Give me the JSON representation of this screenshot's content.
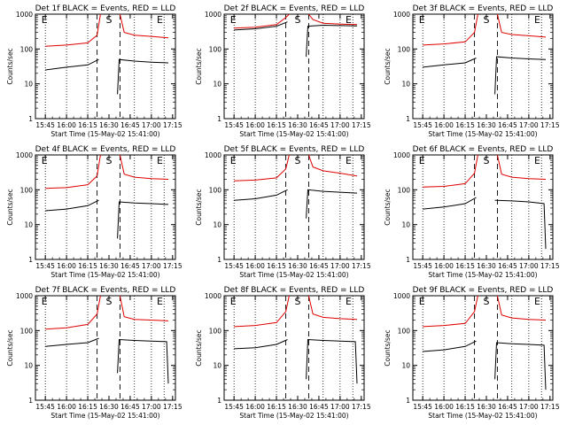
{
  "colors": {
    "events": "#000000",
    "lld": "#e00000",
    "axis": "#000000",
    "background": "#ffffff"
  },
  "chart_data": [
    {
      "type": "line",
      "title": "Det 1f BLACK = Events, RED = LLD",
      "xlabel": "Start Time (15-May-02 15:41:00)",
      "ylabel": "Counts/sec",
      "ylog": true,
      "ylim": [
        1,
        1000
      ],
      "x_ticks": [
        "15:45",
        "16:00",
        "16:15",
        "16:30",
        "16:45",
        "17:00",
        "17:15"
      ],
      "y_ticks": [
        "1",
        "10",
        "100",
        "1000"
      ],
      "markers": [
        "E",
        "S",
        "E"
      ],
      "series": [
        {
          "name": "LLD",
          "points": [
            [
              15.75,
              120
            ],
            [
              16.0,
              130
            ],
            [
              16.25,
              150
            ],
            [
              16.36,
              250
            ],
            [
              16.4,
              1200
            ]
          ],
          "points2": [
            [
              16.63,
              1200
            ],
            [
              16.68,
              300
            ],
            [
              16.8,
              250
            ],
            [
              17.0,
              230
            ],
            [
              17.2,
              210
            ]
          ]
        },
        {
          "name": "Events",
          "points": [
            [
              15.75,
              25
            ],
            [
              16.0,
              30
            ],
            [
              16.25,
              35
            ],
            [
              16.38,
              50
            ]
          ],
          "points2": [
            [
              16.6,
              5
            ],
            [
              16.62,
              50
            ],
            [
              16.8,
              45
            ],
            [
              17.0,
              42
            ],
            [
              17.2,
              40
            ]
          ]
        }
      ]
    },
    {
      "type": "line",
      "title": "Det 2f BLACK = Events, RED = LLD",
      "xlabel": "Start Time (15-May-02 15:41:00)",
      "ylabel": "Counts/sec",
      "ylog": true,
      "ylim": [
        1,
        1000
      ],
      "x_ticks": [
        "15:45",
        "16:00",
        "16:15",
        "16:30",
        "16:45",
        "17:00",
        "17:15"
      ],
      "y_ticks": [
        "1",
        "10",
        "100",
        "1000"
      ],
      "markers": [
        "E",
        "S",
        "E"
      ],
      "series": [
        {
          "name": "LLD",
          "points": [
            [
              15.75,
              400
            ],
            [
              16.0,
              420
            ],
            [
              16.25,
              500
            ],
            [
              16.36,
              800
            ],
            [
              16.4,
              1200
            ]
          ],
          "points2": [
            [
              16.63,
              1200
            ],
            [
              16.68,
              700
            ],
            [
              16.8,
              550
            ],
            [
              17.0,
              520
            ],
            [
              17.2,
              500
            ]
          ]
        },
        {
          "name": "Events",
          "points": [
            [
              15.75,
              350
            ],
            [
              16.0,
              380
            ],
            [
              16.25,
              450
            ],
            [
              16.38,
              600
            ]
          ],
          "points2": [
            [
              16.6,
              60
            ],
            [
              16.62,
              450
            ],
            [
              16.8,
              480
            ],
            [
              17.0,
              470
            ],
            [
              17.2,
              460
            ]
          ]
        }
      ]
    },
    {
      "type": "line",
      "title": "Det 3f BLACK = Events, RED = LLD",
      "xlabel": "Start Time (15-May-02 15:41:00)",
      "ylabel": "Counts/sec",
      "ylog": true,
      "ylim": [
        1,
        1000
      ],
      "x_ticks": [
        "15:45",
        "16:00",
        "16:15",
        "16:30",
        "16:45",
        "17:00",
        "17:15"
      ],
      "y_ticks": [
        "1",
        "10",
        "100",
        "1000"
      ],
      "markers": [
        "E",
        "S",
        "E"
      ],
      "series": [
        {
          "name": "LLD",
          "points": [
            [
              15.75,
              130
            ],
            [
              16.0,
              140
            ],
            [
              16.25,
              160
            ],
            [
              16.36,
              300
            ],
            [
              16.4,
              1200
            ]
          ],
          "points2": [
            [
              16.63,
              1200
            ],
            [
              16.68,
              300
            ],
            [
              16.8,
              260
            ],
            [
              17.0,
              240
            ],
            [
              17.2,
              220
            ]
          ]
        },
        {
          "name": "Events",
          "points": [
            [
              15.75,
              30
            ],
            [
              16.0,
              35
            ],
            [
              16.25,
              40
            ],
            [
              16.38,
              55
            ]
          ],
          "points2": [
            [
              16.6,
              5
            ],
            [
              16.62,
              60
            ],
            [
              16.8,
              55
            ],
            [
              17.0,
              52
            ],
            [
              17.2,
              50
            ]
          ]
        }
      ]
    },
    {
      "type": "line",
      "title": "Det 4f BLACK = Events, RED = LLD",
      "xlabel": "Start Time (15-May-02 15:41:00)",
      "ylabel": "Counts/sec",
      "ylog": true,
      "ylim": [
        1,
        1000
      ],
      "x_ticks": [
        "15:45",
        "16:00",
        "16:15",
        "16:30",
        "16:45",
        "17:00",
        "17:15"
      ],
      "y_ticks": [
        "1",
        "10",
        "100",
        "1000"
      ],
      "markers": [
        "E",
        "S",
        "E"
      ],
      "series": [
        {
          "name": "LLD",
          "points": [
            [
              15.75,
              110
            ],
            [
              16.0,
              115
            ],
            [
              16.25,
              140
            ],
            [
              16.36,
              250
            ],
            [
              16.4,
              1200
            ]
          ],
          "points2": [
            [
              16.63,
              1200
            ],
            [
              16.68,
              280
            ],
            [
              16.8,
              230
            ],
            [
              17.0,
              210
            ],
            [
              17.2,
              200
            ]
          ]
        },
        {
          "name": "Events",
          "points": [
            [
              15.75,
              25
            ],
            [
              16.0,
              28
            ],
            [
              16.25,
              35
            ],
            [
              16.38,
              50
            ]
          ],
          "points2": [
            [
              16.6,
              4
            ],
            [
              16.62,
              45
            ],
            [
              16.8,
              42
            ],
            [
              17.0,
              40
            ],
            [
              17.2,
              38
            ]
          ]
        }
      ]
    },
    {
      "type": "line",
      "title": "Det 5f BLACK = Events, RED = LLD",
      "xlabel": "Start Time (15-May-02 15:41:00)",
      "ylabel": "Counts/sec",
      "ylog": true,
      "ylim": [
        1,
        1000
      ],
      "x_ticks": [
        "15:45",
        "16:00",
        "16:15",
        "16:30",
        "16:45",
        "17:00",
        "17:15"
      ],
      "y_ticks": [
        "1",
        "10",
        "100",
        "1000"
      ],
      "markers": [
        "E",
        "S",
        "E"
      ],
      "series": [
        {
          "name": "LLD",
          "points": [
            [
              15.75,
              180
            ],
            [
              16.0,
              190
            ],
            [
              16.25,
              220
            ],
            [
              16.36,
              400
            ],
            [
              16.4,
              1200
            ]
          ],
          "points2": [
            [
              16.63,
              1200
            ],
            [
              16.68,
              450
            ],
            [
              16.8,
              350
            ],
            [
              17.0,
              300
            ],
            [
              17.2,
              250
            ]
          ]
        },
        {
          "name": "Events",
          "points": [
            [
              15.75,
              50
            ],
            [
              16.0,
              55
            ],
            [
              16.25,
              70
            ],
            [
              16.38,
              100
            ]
          ],
          "points2": [
            [
              16.6,
              15
            ],
            [
              16.62,
              100
            ],
            [
              16.8,
              90
            ],
            [
              17.0,
              85
            ],
            [
              17.2,
              80
            ]
          ]
        }
      ]
    },
    {
      "type": "line",
      "title": "Det 6f BLACK = Events, RED = LLD",
      "xlabel": "Start Time (15-May-02 15:41:00)",
      "ylabel": "Counts/sec",
      "ylog": true,
      "ylim": [
        1,
        1000
      ],
      "x_ticks": [
        "15:45",
        "16:00",
        "16:15",
        "16:30",
        "16:45",
        "17:00",
        "17:15"
      ],
      "y_ticks": [
        "1",
        "10",
        "100",
        "1000"
      ],
      "markers": [
        "E",
        "S",
        "E"
      ],
      "series": [
        {
          "name": "LLD",
          "points": [
            [
              15.75,
              120
            ],
            [
              16.0,
              125
            ],
            [
              16.25,
              150
            ],
            [
              16.36,
              300
            ],
            [
              16.4,
              1200
            ]
          ],
          "points2": [
            [
              16.63,
              1200
            ],
            [
              16.68,
              280
            ],
            [
              16.8,
              230
            ],
            [
              17.0,
              210
            ],
            [
              17.2,
              200
            ]
          ]
        },
        {
          "name": "Events",
          "points": [
            [
              15.75,
              28
            ],
            [
              16.0,
              32
            ],
            [
              16.25,
              40
            ],
            [
              16.38,
              60
            ]
          ],
          "points2": [
            [
              16.6,
              50
            ],
            [
              16.62,
              50
            ],
            [
              16.8,
              48
            ],
            [
              17.0,
              45
            ],
            [
              17.18,
              40
            ],
            [
              17.2,
              2
            ]
          ]
        }
      ]
    },
    {
      "type": "line",
      "title": "Det 7f BLACK = Events, RED = LLD",
      "xlabel": "Start Time (15-May-02 15:41:00)",
      "ylabel": "Counts/sec",
      "ylog": true,
      "ylim": [
        1,
        1000
      ],
      "x_ticks": [
        "15:45",
        "16:00",
        "16:15",
        "16:30",
        "16:45",
        "17:00",
        "17:15"
      ],
      "y_ticks": [
        "1",
        "10",
        "100",
        "1000"
      ],
      "markers": [
        "E",
        "S",
        "E"
      ],
      "series": [
        {
          "name": "LLD",
          "points": [
            [
              15.75,
              110
            ],
            [
              16.0,
              120
            ],
            [
              16.25,
              150
            ],
            [
              16.36,
              300
            ],
            [
              16.4,
              1200
            ]
          ],
          "points2": [
            [
              16.63,
              1200
            ],
            [
              16.68,
              250
            ],
            [
              16.8,
              210
            ],
            [
              17.0,
              200
            ],
            [
              17.2,
              190
            ]
          ]
        },
        {
          "name": "Events",
          "points": [
            [
              15.75,
              35
            ],
            [
              16.0,
              40
            ],
            [
              16.25,
              45
            ],
            [
              16.38,
              60
            ]
          ],
          "points2": [
            [
              16.6,
              6
            ],
            [
              16.62,
              55
            ],
            [
              16.8,
              52
            ],
            [
              17.0,
              50
            ],
            [
              17.18,
              48
            ],
            [
              17.2,
              3
            ]
          ]
        }
      ]
    },
    {
      "type": "line",
      "title": "Det 8f BLACK = Events, RED = LLD",
      "xlabel": "Start Time (15-May-02 15:41:00)",
      "ylabel": "Counts/sec",
      "ylog": true,
      "ylim": [
        1,
        1000
      ],
      "x_ticks": [
        "15:45",
        "16:00",
        "16:15",
        "16:30",
        "16:45",
        "17:00",
        "17:15"
      ],
      "y_ticks": [
        "1",
        "10",
        "100",
        "1000"
      ],
      "markers": [
        "E",
        "S",
        "E"
      ],
      "series": [
        {
          "name": "LLD",
          "points": [
            [
              15.75,
              130
            ],
            [
              16.0,
              140
            ],
            [
              16.25,
              170
            ],
            [
              16.36,
              350
            ],
            [
              16.4,
              1200
            ]
          ],
          "points2": [
            [
              16.63,
              1200
            ],
            [
              16.68,
              300
            ],
            [
              16.8,
              240
            ],
            [
              17.0,
              220
            ],
            [
              17.2,
              210
            ]
          ]
        },
        {
          "name": "Events",
          "points": [
            [
              15.75,
              30
            ],
            [
              16.0,
              32
            ],
            [
              16.25,
              40
            ],
            [
              16.38,
              55
            ]
          ],
          "points2": [
            [
              16.6,
              4
            ],
            [
              16.62,
              55
            ],
            [
              16.8,
              52
            ],
            [
              17.0,
              50
            ],
            [
              17.18,
              48
            ],
            [
              17.2,
              3
            ]
          ]
        }
      ]
    },
    {
      "type": "line",
      "title": "Det 9f BLACK = Events, RED = LLD",
      "xlabel": "Start Time (15-May-02 15:41:00)",
      "ylabel": "Counts/sec",
      "ylog": true,
      "ylim": [
        1,
        1000
      ],
      "x_ticks": [
        "15:45",
        "16:00",
        "16:15",
        "16:30",
        "16:45",
        "17:00",
        "17:15"
      ],
      "y_ticks": [
        "1",
        "10",
        "100",
        "1000"
      ],
      "markers": [
        "E",
        "S",
        "E"
      ],
      "series": [
        {
          "name": "LLD",
          "points": [
            [
              15.75,
              130
            ],
            [
              16.0,
              140
            ],
            [
              16.25,
              160
            ],
            [
              16.36,
              350
            ],
            [
              16.4,
              1200
            ]
          ],
          "points2": [
            [
              16.63,
              1200
            ],
            [
              16.68,
              280
            ],
            [
              16.8,
              230
            ],
            [
              17.0,
              210
            ],
            [
              17.2,
              200
            ]
          ]
        },
        {
          "name": "Events",
          "points": [
            [
              15.75,
              25
            ],
            [
              16.0,
              28
            ],
            [
              16.25,
              35
            ],
            [
              16.38,
              50
            ]
          ],
          "points2": [
            [
              16.6,
              4
            ],
            [
              16.62,
              45
            ],
            [
              16.8,
              42
            ],
            [
              17.0,
              40
            ],
            [
              17.18,
              38
            ],
            [
              17.2,
              2
            ]
          ]
        }
      ]
    }
  ]
}
